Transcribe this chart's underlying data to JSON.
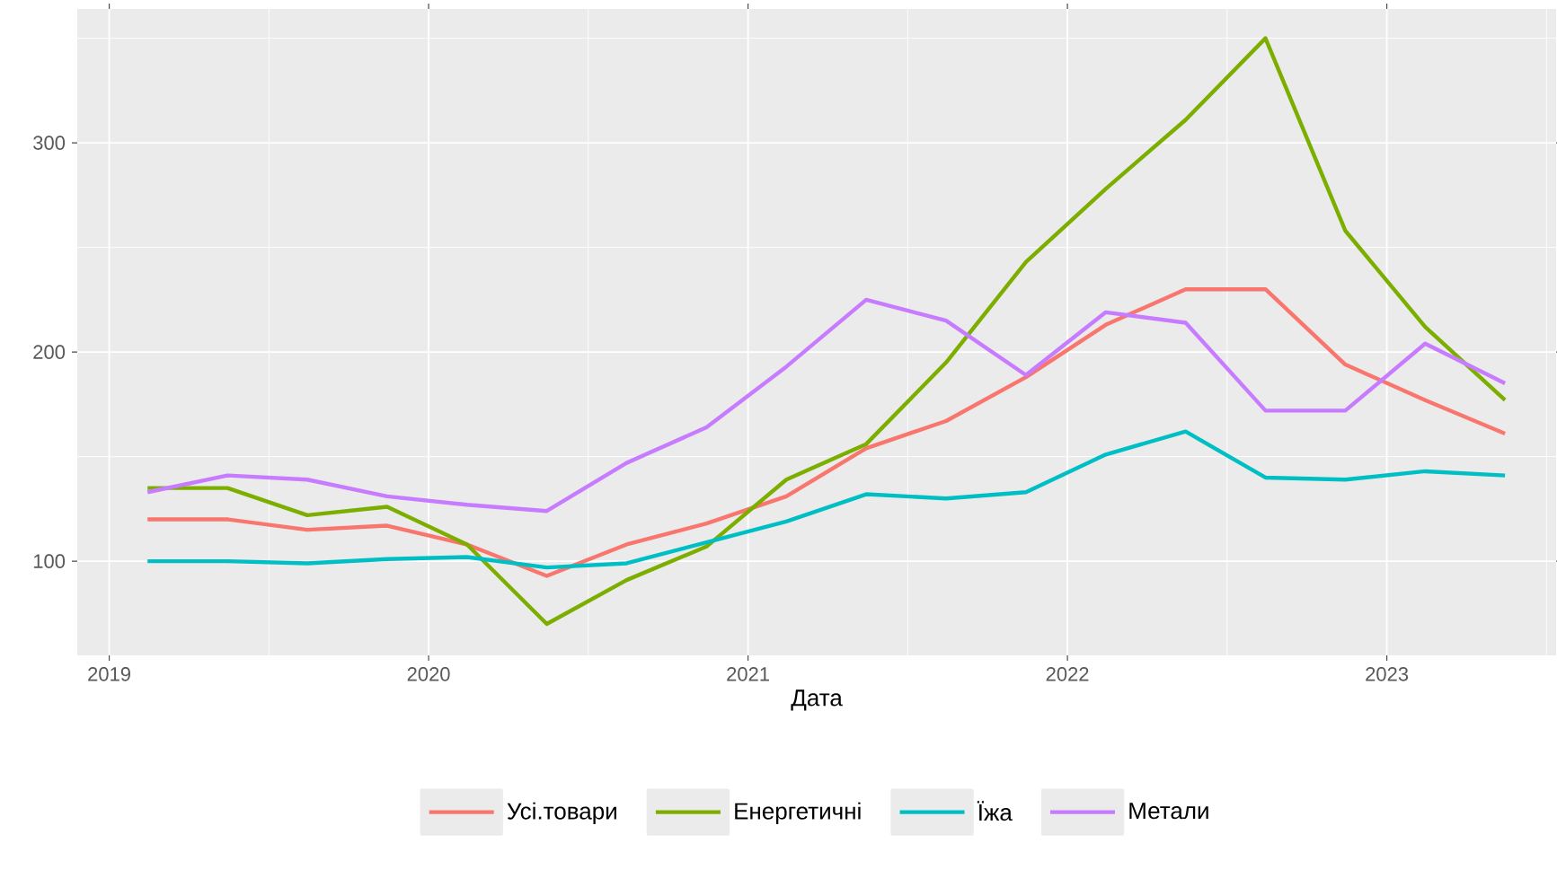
{
  "chart_data": {
    "type": "line",
    "xlabel": "Дата",
    "x": [
      "2019-02-15",
      "2019-05-15",
      "2019-08-15",
      "2019-11-15",
      "2020-02-15",
      "2020-05-15",
      "2020-08-15",
      "2020-11-15",
      "2021-02-15",
      "2021-05-15",
      "2021-08-15",
      "2021-11-15",
      "2022-02-15",
      "2022-05-15",
      "2022-08-15",
      "2022-11-15",
      "2023-02-15",
      "2023-05-15"
    ],
    "series": [
      {
        "name": "Усі.товари",
        "color": "#f8766d",
        "values": [
          120,
          120,
          115,
          117,
          108,
          93,
          108,
          118,
          131,
          154,
          167,
          188,
          213,
          230,
          230,
          194,
          177,
          161
        ]
      },
      {
        "name": "Енергетичні",
        "color": "#7cae00",
        "values": [
          135,
          135,
          122,
          126,
          108,
          70,
          91,
          107,
          139,
          156,
          195,
          243,
          278,
          311,
          350,
          258,
          212,
          177
        ]
      },
      {
        "name": "Їжа",
        "color": "#00bfc4",
        "values": [
          100,
          100,
          99,
          101,
          102,
          97,
          99,
          109,
          119,
          132,
          130,
          133,
          151,
          162,
          140,
          139,
          143,
          141
        ]
      },
      {
        "name": "Метали",
        "color": "#c77cff",
        "values": [
          133,
          141,
          139,
          131,
          127,
          124,
          147,
          164,
          193,
          225,
          215,
          189,
          219,
          214,
          172,
          172,
          204,
          185
        ]
      }
    ],
    "xlim": [
      "2018-11-25",
      "2023-07-15"
    ],
    "xticks": [
      "2019",
      "2020",
      "2021",
      "2022",
      "2023"
    ],
    "ylim": [
      55,
      364
    ],
    "yticks": [
      100,
      200,
      300
    ],
    "grid": true,
    "legend": "bottom"
  }
}
